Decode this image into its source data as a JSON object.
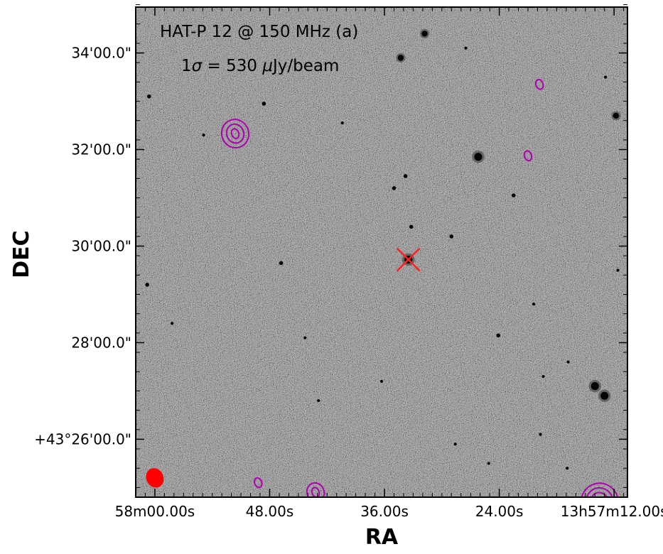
{
  "chart_data": {
    "type": "image",
    "annotation_line1": "HAT-P 12 @ 150 MHz (a)",
    "annotation_line2_prefix": "1",
    "annotation_line2_sigma": "σ",
    "annotation_line2_eq": " = 530 ",
    "annotation_line2_mu": "μ",
    "annotation_line2_unit": "Jy/beam",
    "xlabel": "RA",
    "ylabel": "DEC",
    "xticks": [
      {
        "label": "58m00.00s",
        "ra_s": 60.0
      },
      {
        "label": "48.00s",
        "ra_s": 48.0
      },
      {
        "label": "36.00s",
        "ra_s": 36.0
      },
      {
        "label": "24.00s",
        "ra_s": 24.0
      },
      {
        "label": "13h57m12.00s",
        "ra_s": 12.0
      }
    ],
    "yticks": [
      {
        "label": "34'00.0\"",
        "dec_arcmin": 34.0
      },
      {
        "label": "32'00.0\"",
        "dec_arcmin": 32.0
      },
      {
        "label": "30'00.0\"",
        "dec_arcmin": 30.0
      },
      {
        "label": "28'00.0\"",
        "dec_arcmin": 28.0
      },
      {
        "label": "+43°26'00.0\"",
        "dec_arcmin": 26.0
      }
    ],
    "xlim_ra_s": [
      62.0,
      10.6
    ],
    "ylim_dec_arcmin": [
      24.8,
      34.95
    ],
    "target": {
      "ra_s": 33.5,
      "dec_arcmin": 29.72,
      "marker": "x",
      "color": "#ff2020"
    },
    "beam": {
      "ra_s": 60.0,
      "dec_arcmin": 25.2,
      "color": "#ff0000"
    },
    "contour_color": "#b000b0",
    "contours": [
      {
        "ra_s": 51.6,
        "dec_arcmin": 32.33,
        "levels": 3
      },
      {
        "ra_s": 19.8,
        "dec_arcmin": 33.35,
        "levels": 1
      },
      {
        "ra_s": 21.0,
        "dec_arcmin": 31.87,
        "levels": 1
      },
      {
        "ra_s": 49.2,
        "dec_arcmin": 25.1,
        "levels": 1
      },
      {
        "ra_s": 43.2,
        "dec_arcmin": 24.9,
        "levels": 2
      },
      {
        "ra_s": 13.5,
        "dec_arcmin": 24.7,
        "levels": 4
      }
    ],
    "sources": [
      {
        "ra_s": 31.8,
        "dec_arcmin": 34.4,
        "size": 3
      },
      {
        "ra_s": 34.3,
        "dec_arcmin": 33.9,
        "size": 3
      },
      {
        "ra_s": 26.2,
        "dec_arcmin": 31.85,
        "size": 4
      },
      {
        "ra_s": 13.0,
        "dec_arcmin": 26.9,
        "size": 4
      },
      {
        "ra_s": 12.8,
        "dec_arcmin": 24.7,
        "size": 4
      },
      {
        "ra_s": 33.5,
        "dec_arcmin": 29.72,
        "size": 4
      },
      {
        "ra_s": 14.0,
        "dec_arcmin": 27.1,
        "size": 4
      },
      {
        "ra_s": 11.8,
        "dec_arcmin": 32.7,
        "size": 3
      },
      {
        "ra_s": 60.6,
        "dec_arcmin": 33.1,
        "size": 2
      },
      {
        "ra_s": 24.1,
        "dec_arcmin": 28.15,
        "size": 2
      },
      {
        "ra_s": 29.0,
        "dec_arcmin": 30.2,
        "size": 2
      },
      {
        "ra_s": 35.0,
        "dec_arcmin": 31.2,
        "size": 2
      },
      {
        "ra_s": 33.2,
        "dec_arcmin": 30.4,
        "size": 2
      },
      {
        "ra_s": 46.8,
        "dec_arcmin": 29.65,
        "size": 2
      },
      {
        "ra_s": 60.8,
        "dec_arcmin": 29.2,
        "size": 2
      },
      {
        "ra_s": 58.2,
        "dec_arcmin": 28.4,
        "size": 1.5
      },
      {
        "ra_s": 44.3,
        "dec_arcmin": 28.1,
        "size": 1.5
      },
      {
        "ra_s": 22.5,
        "dec_arcmin": 31.05,
        "size": 2
      },
      {
        "ra_s": 33.8,
        "dec_arcmin": 31.45,
        "size": 2
      },
      {
        "ra_s": 16.8,
        "dec_arcmin": 27.6,
        "size": 1.5
      },
      {
        "ra_s": 19.4,
        "dec_arcmin": 27.3,
        "size": 1.5
      },
      {
        "ra_s": 36.3,
        "dec_arcmin": 27.2,
        "size": 1.5
      },
      {
        "ra_s": 48.6,
        "dec_arcmin": 32.95,
        "size": 2
      },
      {
        "ra_s": 19.7,
        "dec_arcmin": 26.1,
        "size": 1.5
      },
      {
        "ra_s": 25.1,
        "dec_arcmin": 25.5,
        "size": 1.5
      },
      {
        "ra_s": 42.9,
        "dec_arcmin": 26.8,
        "size": 1.5
      },
      {
        "ra_s": 28.6,
        "dec_arcmin": 25.9,
        "size": 1.5
      },
      {
        "ra_s": 12.9,
        "dec_arcmin": 33.5,
        "size": 1.5
      },
      {
        "ra_s": 27.5,
        "dec_arcmin": 34.1,
        "size": 1.5
      },
      {
        "ra_s": 40.4,
        "dec_arcmin": 32.55,
        "size": 1.5
      },
      {
        "ra_s": 54.9,
        "dec_arcmin": 32.3,
        "size": 1.5
      },
      {
        "ra_s": 16.9,
        "dec_arcmin": 25.4,
        "size": 1.5
      },
      {
        "ra_s": 20.4,
        "dec_arcmin": 28.8,
        "size": 1.5
      },
      {
        "ra_s": 11.6,
        "dec_arcmin": 29.5,
        "size": 1.5
      }
    ]
  }
}
